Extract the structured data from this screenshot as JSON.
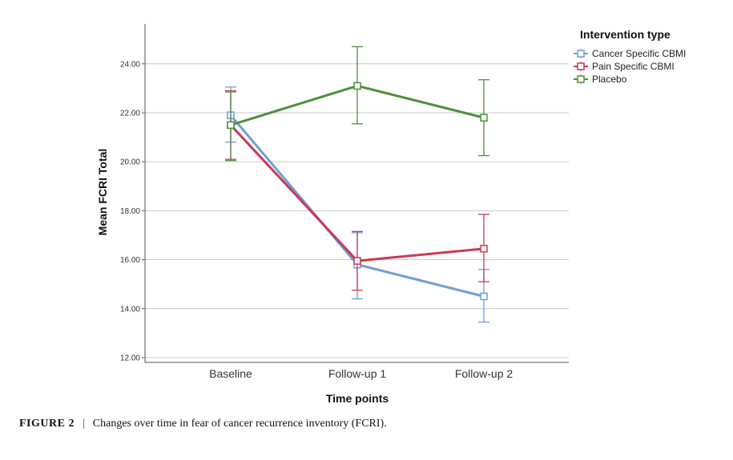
{
  "chart_data": {
    "type": "line",
    "xlabel": "Time points",
    "ylabel": "Mean FCRI Total",
    "ylim": [
      12,
      25
    ],
    "yticks": [
      "12.00",
      "14.00",
      "16.00",
      "18.00",
      "20.00",
      "22.00",
      "24.00"
    ],
    "grid": true,
    "categories": [
      "Baseline",
      "Follow-up 1",
      "Follow-up 2"
    ],
    "legend_title": "Intervention type",
    "legend_position": "top-right",
    "series": [
      {
        "name": "Cancer Specific CBMI",
        "color": "#6f9ed8",
        "values": [
          21.9,
          15.8,
          14.5
        ],
        "error_low": [
          20.8,
          14.4,
          13.45
        ],
        "error_high": [
          23.05,
          17.1,
          15.6
        ]
      },
      {
        "name": "Pain Specific CBMI",
        "color": "#c93a57",
        "values": [
          21.5,
          15.95,
          16.45
        ],
        "error_low": [
          20.1,
          14.75,
          15.1
        ],
        "error_high": [
          22.9,
          17.15,
          17.85
        ]
      },
      {
        "name": "Placebo",
        "color": "#4e8f3b",
        "values": [
          21.5,
          23.1,
          21.8
        ],
        "error_low": [
          20.05,
          21.55,
          20.25
        ],
        "error_high": [
          22.85,
          24.7,
          23.35
        ]
      }
    ]
  },
  "caption": {
    "label": "FIGURE 2",
    "separator": "|",
    "text": "Changes over time in fear of cancer recurrence inventory (FCRI)."
  }
}
